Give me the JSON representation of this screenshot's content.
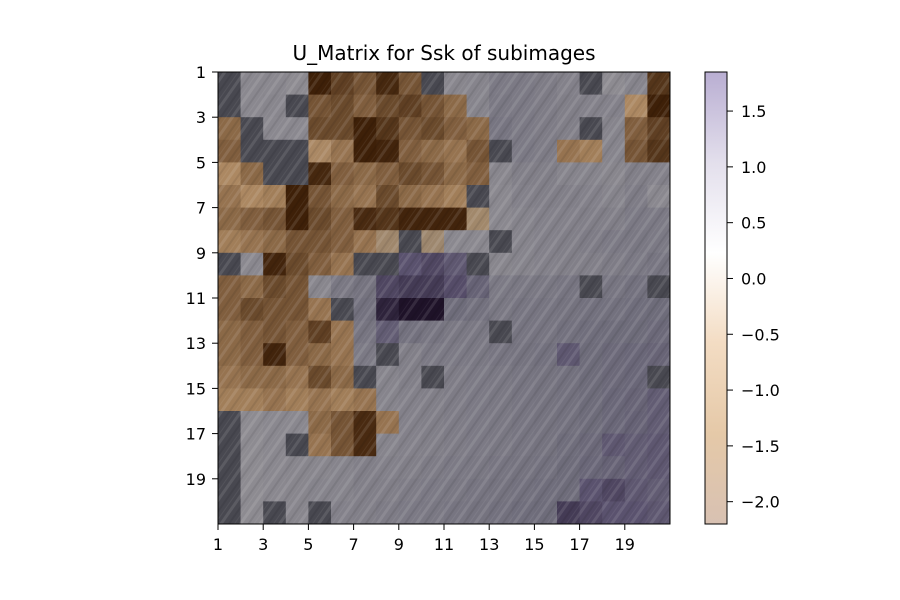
{
  "chart_data": {
    "type": "heatmap",
    "title": "U_Matrix for Ssk of subimages",
    "xlabel": "",
    "ylabel": "",
    "rows": 20,
    "cols": 20,
    "x_ticks": [
      "1",
      "3",
      "5",
      "7",
      "9",
      "11",
      "13",
      "15",
      "17",
      "19"
    ],
    "y_ticks": [
      "1",
      "3",
      "5",
      "7",
      "9",
      "11",
      "13",
      "15",
      "17",
      "19"
    ],
    "colorbar": {
      "min": -2.2,
      "max": 1.85,
      "ticks": [
        -2.0,
        -1.5,
        -1.0,
        -0.5,
        0.0,
        0.5,
        1.0,
        1.5
      ],
      "tick_labels": [
        "−2.0",
        "−1.5",
        "−1.0",
        "−0.5",
        "0.0",
        "0.5",
        "1.0",
        "1.5"
      ],
      "colors": [
        "#d8c1b2",
        "#e5c9a8",
        "#f3dcc3",
        "#ffffff",
        "#e3dfec",
        "#b9aed2"
      ]
    },
    "grid": false,
    "values": [
      [
        0.05,
        0.2,
        0.2,
        0.15,
        -2.2,
        -1.7,
        -1.5,
        -2.0,
        -1.5,
        0.05,
        0.25,
        0.3,
        0.5,
        0.5,
        0.45,
        0.35,
        0.1,
        0.15,
        0.3,
        -1.8
      ],
      [
        0.05,
        0.2,
        0.25,
        0.1,
        -1.5,
        -1.6,
        -1.4,
        -1.6,
        -1.7,
        -1.5,
        -1.3,
        0.3,
        0.55,
        0.5,
        0.45,
        0.4,
        0.35,
        0.35,
        -1.0,
        -2.2
      ],
      [
        -1.3,
        0.05,
        0.2,
        0.2,
        -1.6,
        -1.6,
        -2.2,
        -1.8,
        -1.5,
        -1.6,
        -1.4,
        -1.3,
        0.6,
        0.5,
        0.45,
        0.4,
        0.05,
        0.3,
        -1.4,
        -1.7
      ],
      [
        -1.4,
        0.05,
        0.05,
        0.05,
        -0.9,
        -1.2,
        -2.2,
        -2.1,
        -1.4,
        -1.3,
        -1.2,
        -1.5,
        0.05,
        0.5,
        0.45,
        -1.2,
        -1.1,
        0.3,
        -1.5,
        -1.8
      ],
      [
        -1.0,
        -1.3,
        0.05,
        0.1,
        -2.0,
        -1.4,
        -1.3,
        -1.4,
        -1.6,
        -1.5,
        -1.3,
        -1.4,
        0.25,
        0.4,
        0.4,
        0.3,
        0.3,
        0.25,
        0.4,
        0.35
      ],
      [
        -1.2,
        -1.0,
        -1.1,
        -2.2,
        -1.5,
        -1.3,
        -1.2,
        -1.6,
        -1.3,
        -1.2,
        -1.1,
        0.05,
        0.2,
        0.35,
        0.4,
        0.4,
        0.35,
        0.3,
        0.45,
        0.2
      ],
      [
        -1.3,
        -1.4,
        -1.5,
        -2.2,
        -1.6,
        -1.4,
        -1.9,
        -1.8,
        -2.1,
        -2.1,
        -2.1,
        -0.5,
        0.2,
        0.3,
        0.35,
        0.35,
        0.4,
        0.4,
        0.5,
        0.5
      ],
      [
        -1.1,
        -1.2,
        -1.3,
        -1.5,
        -1.5,
        -1.4,
        -1.2,
        -0.4,
        0.05,
        -0.3,
        0.2,
        0.2,
        0.05,
        0.3,
        0.35,
        0.4,
        0.45,
        0.5,
        0.55,
        0.5
      ],
      [
        0.05,
        0.2,
        -2.1,
        -1.6,
        -1.4,
        -1.2,
        0.05,
        0.05,
        1.3,
        1.4,
        1.2,
        0.05,
        0.25,
        0.3,
        0.35,
        0.4,
        0.4,
        0.45,
        0.5,
        0.6
      ],
      [
        -1.4,
        -1.3,
        -1.6,
        -1.5,
        0.25,
        0.55,
        0.65,
        1.4,
        1.5,
        1.5,
        1.35,
        1.0,
        0.5,
        0.55,
        0.55,
        0.6,
        0.05,
        0.6,
        0.7,
        0.05
      ],
      [
        -1.4,
        -1.6,
        -1.5,
        -1.5,
        -1.2,
        0.05,
        0.7,
        1.7,
        1.85,
        1.85,
        0.8,
        0.7,
        0.55,
        0.6,
        0.6,
        0.65,
        0.7,
        0.7,
        0.75,
        0.8
      ],
      [
        -1.3,
        -1.4,
        -1.5,
        -1.4,
        -1.7,
        -1.2,
        0.6,
        1.1,
        0.7,
        0.6,
        0.55,
        0.55,
        0.05,
        0.6,
        0.6,
        0.7,
        0.75,
        0.8,
        0.8,
        0.85
      ],
      [
        -1.3,
        -1.4,
        -2.1,
        -1.4,
        -1.3,
        -1.2,
        0.5,
        0.05,
        0.4,
        0.5,
        0.5,
        0.55,
        0.6,
        0.65,
        0.7,
        1.2,
        0.8,
        0.85,
        0.9,
        0.95
      ],
      [
        -1.2,
        -1.3,
        -1.3,
        -1.2,
        -1.6,
        -1.3,
        0.05,
        0.3,
        0.4,
        0.05,
        0.45,
        0.5,
        0.55,
        0.6,
        0.65,
        0.7,
        0.8,
        0.85,
        0.9,
        0.05
      ],
      [
        -1.1,
        -1.1,
        -1.2,
        -1.1,
        -1.2,
        -1.1,
        -1.2,
        0.3,
        0.35,
        0.4,
        0.45,
        0.5,
        0.55,
        0.6,
        0.65,
        0.7,
        0.8,
        0.9,
        0.95,
        1.1
      ],
      [
        0.1,
        0.15,
        0.2,
        0.2,
        -1.3,
        -1.5,
        -1.9,
        -1.2,
        0.35,
        0.4,
        0.45,
        0.5,
        0.55,
        0.6,
        0.65,
        0.7,
        0.8,
        0.9,
        1.0,
        1.1
      ],
      [
        0.1,
        0.15,
        0.2,
        0.05,
        -1.2,
        -1.5,
        -1.9,
        0.3,
        0.35,
        0.4,
        0.45,
        0.5,
        0.55,
        0.6,
        0.65,
        0.75,
        0.85,
        1.2,
        1.1,
        1.2
      ],
      [
        0.1,
        0.15,
        0.2,
        0.25,
        0.25,
        0.3,
        0.4,
        0.35,
        0.4,
        0.45,
        0.5,
        0.55,
        0.6,
        0.65,
        0.7,
        0.8,
        0.9,
        1.0,
        1.1,
        1.2
      ],
      [
        0.1,
        0.15,
        0.2,
        0.25,
        0.3,
        0.3,
        0.4,
        0.4,
        0.45,
        0.5,
        0.55,
        0.6,
        0.65,
        0.7,
        0.75,
        0.8,
        1.3,
        1.4,
        1.2,
        1.1
      ],
      [
        0.1,
        0.15,
        0.05,
        0.25,
        0.05,
        0.35,
        0.4,
        0.45,
        0.5,
        0.55,
        0.6,
        0.65,
        0.7,
        0.75,
        0.8,
        1.5,
        1.4,
        1.3,
        1.3,
        1.2
      ]
    ]
  }
}
